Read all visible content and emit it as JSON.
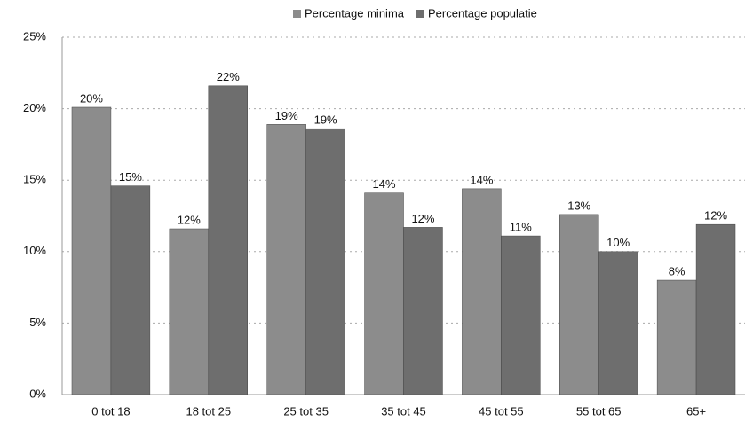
{
  "chart_data": {
    "type": "bar",
    "categories": [
      "0 tot 18",
      "18 tot 25",
      "25 tot 35",
      "35 tot 45",
      "45 tot 55",
      "55 tot 65",
      "65+"
    ],
    "series": [
      {
        "name": "Percentage minima",
        "color": "#8c8c8c",
        "values": [
          20.1,
          11.6,
          18.9,
          14.1,
          14.4,
          12.6,
          8.0
        ],
        "value_labels": [
          "20%",
          "12%",
          "19%",
          "14%",
          "14%",
          "13%",
          "8%"
        ]
      },
      {
        "name": "Percentage populatie",
        "color": "#6e6e6e",
        "values": [
          14.6,
          21.6,
          18.6,
          11.7,
          11.1,
          10.0,
          11.9
        ],
        "value_labels": [
          "15%",
          "22%",
          "19%",
          "12%",
          "11%",
          "10%",
          "12%"
        ]
      }
    ],
    "ylim": [
      0,
      25
    ],
    "yticks": [
      {
        "value": 0,
        "label": "0%"
      },
      {
        "value": 5,
        "label": "5%"
      },
      {
        "value": 10,
        "label": "10%"
      },
      {
        "value": 15,
        "label": "15%"
      },
      {
        "value": 20,
        "label": "20%"
      },
      {
        "value": 25,
        "label": "25%"
      }
    ],
    "grid": true,
    "legend": "top"
  }
}
